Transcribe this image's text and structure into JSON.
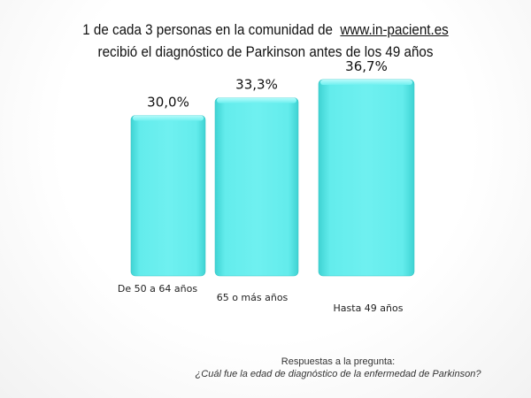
{
  "title": {
    "line1_prefix": "1 de cada 3 personas en la comunidad de",
    "line1_link": "www.in-pacient.es",
    "line2": "recibió el diagnóstico de Parkinson antes de los 49 años"
  },
  "chart_data": {
    "type": "bar",
    "categories": [
      "De 50 a 64 años",
      "65 o más años",
      "Hasta 49 años"
    ],
    "values": [
      30.0,
      33.3,
      36.7
    ],
    "value_labels": [
      "30,0%",
      "33,3%",
      "36,7%"
    ],
    "title": "1 de cada 3 personas en la comunidad de www.in-pacient.es recibió el diagnóstico de Parkinson antes de los 49 años",
    "xlabel": "",
    "ylabel": "",
    "ylim": [
      0,
      40
    ],
    "bar_color": "#5CE8E8",
    "grid": false
  },
  "footnote": {
    "intro": "Respuestas a la pregunta:",
    "question": "¿Cuál fue la edad de diagnóstico de la enfermedad de Parkinson?"
  }
}
